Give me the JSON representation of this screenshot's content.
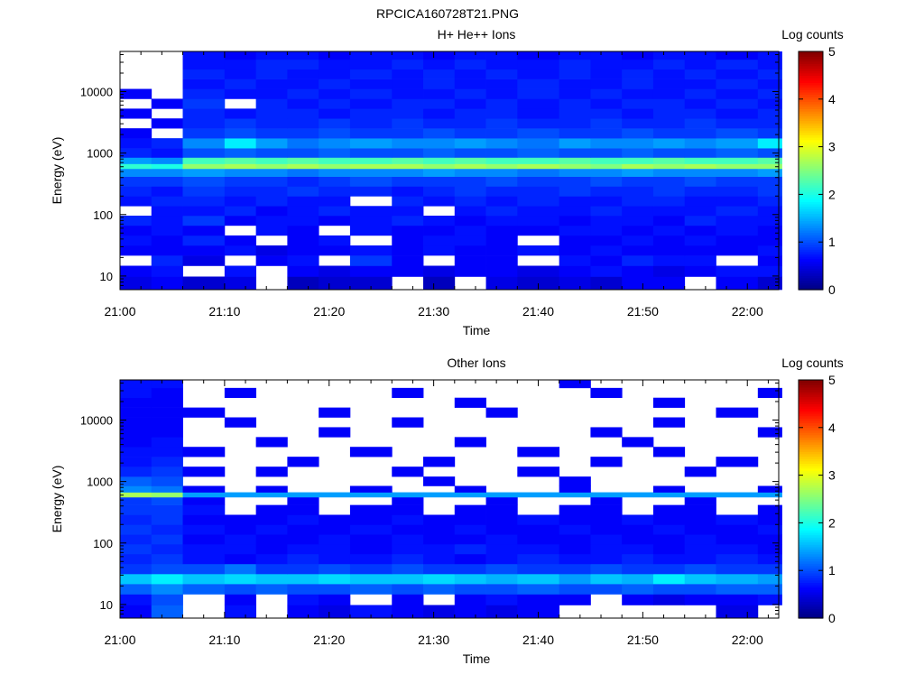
{
  "figure_title": "RPCICA160728T21.PNG",
  "chart_data": [
    {
      "type": "heatmap",
      "title": "H+ He++ Ions",
      "xlabel": "Time",
      "ylabel": "Energy (eV)",
      "x_ticks": [
        "21:00",
        "21:10",
        "21:20",
        "21:30",
        "21:40",
        "21:50",
        "22:00"
      ],
      "x_range": [
        "21:00",
        "22:03"
      ],
      "y_scale": "log",
      "y_ticks": [
        "10",
        "100",
        "1000",
        "10000"
      ],
      "y_range": [
        6,
        45000
      ],
      "colorbar": {
        "label": "Log counts",
        "ticks": [
          "0",
          "1",
          "2",
          "3",
          "4",
          "5"
        ],
        "range": [
          0,
          5
        ],
        "colormap": "jet"
      },
      "time_columns": [
        "21:00",
        "21:03",
        "21:06",
        "21:10",
        "21:13",
        "21:16",
        "21:19",
        "21:22",
        "21:26",
        "21:29",
        "21:32",
        "21:35",
        "21:38",
        "21:42",
        "21:45",
        "21:48",
        "21:51",
        "21:54",
        "21:57",
        "22:01"
      ],
      "energy_levels_eV": [
        8,
        12,
        18,
        26,
        38,
        55,
        80,
        115,
        165,
        240,
        345,
        500,
        620,
        720,
        1000,
        1450,
        2100,
        3050,
        4400,
        6350,
        9200,
        13300,
        19200,
        27800,
        40000
      ],
      "data_gaps": [
        "21:00–21:06 above 12000 eV"
      ],
      "log_counts_rows_low_to_high_energy": [
        [
          0.5,
          0.6,
          0.4,
          0.5,
          0.0,
          0.3,
          0.4,
          0.4,
          0.0,
          0.3,
          0.0,
          0.5,
          0.4,
          0.5,
          0.4,
          0.6,
          0.6,
          0.0,
          0.6,
          0.4
        ],
        [
          0.6,
          0.7,
          0.0,
          0.7,
          0.0,
          0.6,
          0.5,
          0.6,
          0.6,
          0.5,
          0.6,
          0.6,
          0.5,
          0.6,
          0.7,
          0.6,
          0.5,
          0.6,
          0.7,
          0.7
        ],
        [
          0.0,
          0.8,
          0.5,
          0.0,
          0.6,
          0.7,
          0.0,
          0.9,
          0.6,
          0.0,
          0.6,
          0.6,
          0.0,
          0.7,
          0.6,
          0.8,
          0.7,
          0.7,
          0.0,
          0.6
        ],
        [
          0.6,
          0.6,
          0.6,
          0.7,
          0.5,
          0.6,
          0.6,
          0.7,
          0.6,
          0.7,
          0.6,
          0.6,
          0.7,
          0.6,
          0.7,
          0.6,
          0.6,
          0.6,
          0.6,
          0.7
        ],
        [
          0.7,
          0.6,
          0.8,
          0.6,
          0.0,
          0.6,
          0.7,
          0.0,
          0.6,
          0.7,
          0.7,
          0.6,
          0.0,
          0.6,
          0.6,
          0.7,
          0.6,
          0.7,
          0.6,
          0.6
        ],
        [
          0.6,
          0.7,
          0.6,
          0.0,
          0.7,
          0.6,
          0.0,
          0.7,
          0.6,
          0.6,
          0.7,
          0.6,
          0.6,
          0.7,
          0.7,
          0.6,
          0.7,
          0.6,
          0.7,
          0.6
        ],
        [
          0.8,
          0.7,
          0.9,
          0.6,
          0.7,
          0.7,
          0.6,
          0.7,
          0.8,
          0.7,
          0.6,
          0.7,
          0.7,
          0.6,
          0.7,
          0.7,
          0.6,
          0.8,
          0.7,
          0.7
        ],
        [
          0.0,
          0.7,
          0.7,
          0.8,
          0.6,
          0.7,
          0.8,
          0.7,
          0.7,
          0.0,
          0.7,
          0.8,
          0.7,
          0.7,
          0.8,
          0.7,
          0.7,
          0.7,
          0.8,
          0.7
        ],
        [
          0.7,
          0.8,
          0.8,
          0.7,
          0.8,
          0.7,
          0.7,
          0.0,
          0.8,
          0.7,
          0.8,
          0.7,
          0.8,
          0.7,
          0.7,
          0.8,
          0.8,
          0.7,
          0.7,
          0.8
        ],
        [
          0.8,
          0.7,
          0.9,
          0.8,
          0.8,
          0.9,
          0.8,
          0.8,
          0.7,
          0.8,
          0.9,
          0.8,
          0.8,
          0.9,
          0.8,
          0.8,
          0.9,
          0.8,
          0.8,
          0.9
        ],
        [
          0.9,
          0.9,
          1.0,
          0.9,
          0.9,
          0.8,
          0.9,
          1.0,
          0.9,
          0.9,
          0.9,
          1.0,
          0.9,
          0.9,
          1.0,
          0.9,
          0.9,
          1.0,
          0.9,
          0.9
        ],
        [
          1.3,
          1.3,
          1.4,
          1.3,
          1.3,
          1.2,
          1.3,
          1.3,
          1.3,
          1.4,
          1.3,
          1.3,
          1.2,
          1.3,
          1.3,
          1.4,
          1.3,
          1.3,
          1.3,
          1.4
        ],
        [
          2.1,
          2.0,
          2.6,
          2.7,
          2.6,
          2.7,
          2.6,
          2.7,
          2.7,
          2.6,
          2.7,
          2.6,
          2.7,
          2.6,
          2.5,
          2.7,
          2.6,
          2.7,
          2.6,
          2.6
        ],
        [
          1.4,
          1.3,
          2.2,
          2.3,
          2.2,
          2.3,
          2.2,
          2.2,
          2.3,
          2.2,
          2.3,
          2.2,
          2.2,
          2.3,
          2.2,
          2.2,
          2.3,
          2.2,
          2.2,
          2.3
        ],
        [
          0.8,
          0.7,
          1.0,
          1.1,
          1.0,
          1.0,
          1.1,
          1.0,
          1.0,
          1.1,
          1.0,
          1.0,
          1.1,
          1.0,
          1.0,
          1.1,
          1.0,
          1.0,
          1.1,
          1.0
        ],
        [
          0.7,
          0.8,
          1.3,
          1.8,
          1.4,
          1.2,
          1.3,
          1.4,
          1.3,
          1.3,
          1.4,
          1.3,
          1.2,
          1.4,
          1.3,
          1.3,
          1.4,
          1.3,
          1.4,
          1.8
        ],
        [
          0.6,
          0.0,
          0.9,
          1.0,
          0.9,
          0.9,
          1.0,
          0.9,
          0.9,
          1.0,
          0.9,
          0.9,
          1.0,
          0.9,
          0.9,
          1.0,
          0.9,
          0.9,
          1.0,
          0.9
        ],
        [
          0.0,
          0.6,
          0.8,
          0.9,
          0.8,
          0.8,
          0.9,
          0.8,
          0.9,
          0.8,
          0.8,
          0.9,
          0.8,
          0.8,
          0.9,
          0.8,
          0.8,
          0.9,
          0.8,
          0.8
        ],
        [
          0.6,
          0.0,
          0.8,
          0.7,
          0.8,
          0.8,
          0.7,
          0.8,
          0.8,
          0.7,
          0.8,
          0.8,
          0.7,
          0.8,
          0.8,
          0.7,
          0.8,
          0.8,
          0.7,
          0.8
        ],
        [
          0.0,
          0.6,
          0.9,
          0.0,
          0.8,
          0.7,
          0.8,
          0.7,
          0.8,
          0.8,
          0.7,
          0.8,
          0.7,
          0.8,
          0.7,
          0.8,
          0.8,
          0.7,
          0.8,
          0.7
        ],
        [
          0.6,
          0.0,
          0.8,
          0.7,
          0.7,
          0.8,
          0.7,
          0.8,
          0.7,
          0.7,
          0.8,
          0.7,
          0.8,
          0.7,
          0.8,
          0.7,
          0.7,
          0.8,
          0.7,
          0.8
        ],
        [
          0.0,
          0.0,
          0.7,
          0.8,
          0.7,
          0.7,
          0.8,
          0.7,
          0.7,
          0.8,
          0.7,
          0.7,
          0.8,
          0.7,
          0.7,
          0.8,
          0.7,
          0.7,
          0.8,
          0.7
        ],
        [
          0.0,
          0.0,
          0.8,
          0.7,
          0.8,
          0.7,
          0.7,
          0.8,
          0.7,
          0.8,
          0.7,
          0.8,
          0.7,
          0.8,
          0.7,
          0.8,
          0.7,
          0.8,
          0.7,
          0.8
        ],
        [
          0.0,
          0.0,
          0.7,
          0.7,
          0.8,
          0.8,
          0.7,
          0.7,
          0.8,
          0.7,
          0.8,
          0.7,
          0.7,
          0.8,
          0.7,
          0.7,
          0.8,
          0.7,
          0.8,
          0.7
        ],
        [
          0.0,
          0.0,
          0.7,
          0.6,
          0.7,
          0.7,
          0.6,
          0.7,
          0.7,
          0.6,
          0.7,
          0.7,
          0.6,
          0.7,
          0.7,
          0.6,
          0.7,
          0.7,
          0.6,
          0.7
        ]
      ]
    },
    {
      "type": "heatmap",
      "title": "Other Ions",
      "xlabel": "Time",
      "ylabel": "Energy (eV)",
      "x_ticks": [
        "21:00",
        "21:10",
        "21:20",
        "21:30",
        "21:40",
        "21:50",
        "22:00"
      ],
      "x_range": [
        "21:00",
        "22:03"
      ],
      "y_scale": "log",
      "y_ticks": [
        "10",
        "100",
        "1000",
        "10000"
      ],
      "y_range": [
        6,
        45000
      ],
      "colorbar": {
        "label": "Log counts",
        "ticks": [
          "0",
          "1",
          "2",
          "3",
          "4",
          "5"
        ],
        "range": [
          0,
          5
        ],
        "colormap": "jet"
      },
      "time_columns": [
        "21:00",
        "21:03",
        "21:06",
        "21:10",
        "21:13",
        "21:16",
        "21:19",
        "21:22",
        "21:26",
        "21:29",
        "21:32",
        "21:35",
        "21:38",
        "21:42",
        "21:45",
        "21:48",
        "21:51",
        "21:54",
        "21:57",
        "22:01"
      ],
      "energy_levels_eV": [
        8,
        12,
        18,
        26,
        38,
        55,
        80,
        115,
        165,
        240,
        345,
        500,
        620,
        720,
        1000,
        1450,
        2100,
        3050,
        4400,
        6350,
        9200,
        13300,
        19200,
        27800,
        40000
      ],
      "log_counts_rows_low_to_high_energy": [
        [
          0.6,
          1.1,
          0.0,
          0.7,
          0.0,
          0.6,
          0.5,
          0.7,
          0.6,
          0.5,
          0.6,
          0.5,
          0.6,
          0.0,
          0.0,
          0.0,
          0.0,
          0.0,
          0.5,
          0.0
        ],
        [
          0.7,
          1.0,
          0.0,
          0.6,
          0.0,
          0.7,
          0.6,
          0.0,
          0.6,
          0.0,
          0.6,
          0.7,
          0.6,
          0.6,
          0.0,
          0.6,
          0.5,
          0.6,
          0.6,
          0.7
        ],
        [
          1.1,
          1.3,
          1.1,
          1.0,
          1.1,
          1.0,
          1.0,
          1.1,
          1.0,
          1.1,
          1.0,
          1.0,
          1.1,
          1.0,
          1.0,
          1.1,
          1.0,
          1.0,
          1.1,
          1.1
        ],
        [
          1.6,
          1.8,
          1.6,
          1.7,
          1.6,
          1.6,
          1.7,
          1.6,
          1.6,
          1.7,
          1.6,
          1.5,
          1.6,
          1.4,
          1.6,
          1.5,
          1.8,
          1.6,
          1.5,
          1.4
        ],
        [
          0.9,
          1.0,
          1.0,
          1.2,
          0.9,
          0.9,
          1.0,
          0.9,
          1.0,
          0.9,
          0.9,
          1.0,
          0.9,
          0.9,
          1.0,
          0.9,
          0.9,
          1.0,
          0.9,
          0.9
        ],
        [
          0.8,
          0.9,
          0.7,
          0.6,
          0.7,
          0.8,
          0.7,
          0.7,
          0.8,
          0.7,
          0.6,
          0.7,
          0.8,
          0.7,
          0.7,
          0.8,
          0.7,
          0.7,
          0.8,
          0.7
        ],
        [
          0.9,
          0.8,
          0.7,
          0.7,
          0.6,
          0.7,
          0.7,
          0.6,
          0.7,
          0.7,
          0.8,
          0.7,
          0.7,
          0.6,
          0.7,
          0.7,
          0.6,
          0.7,
          0.7,
          0.6
        ],
        [
          0.8,
          0.9,
          0.6,
          0.7,
          0.6,
          0.6,
          0.7,
          0.6,
          0.7,
          0.6,
          0.6,
          0.7,
          0.6,
          0.6,
          0.7,
          0.6,
          0.6,
          0.7,
          0.6,
          0.6
        ],
        [
          0.9,
          0.8,
          0.7,
          0.6,
          0.7,
          0.6,
          0.6,
          0.7,
          0.6,
          0.6,
          0.7,
          0.6,
          0.6,
          0.7,
          0.6,
          0.6,
          0.7,
          0.6,
          0.6,
          0.7
        ],
        [
          0.8,
          0.9,
          0.6,
          0.6,
          0.6,
          0.7,
          0.6,
          0.6,
          0.7,
          0.6,
          0.6,
          0.6,
          0.7,
          0.6,
          0.6,
          0.7,
          0.6,
          0.6,
          0.7,
          0.6
        ],
        [
          0.9,
          0.9,
          0.7,
          0.0,
          0.6,
          0.6,
          0.0,
          0.6,
          0.6,
          0.0,
          0.6,
          0.6,
          0.0,
          0.6,
          0.6,
          0.0,
          0.6,
          0.6,
          0.0,
          0.6
        ],
        [
          0.9,
          1.0,
          0.6,
          0.0,
          0.0,
          0.6,
          0.0,
          0.0,
          0.6,
          0.0,
          0.0,
          0.6,
          0.0,
          0.0,
          0.6,
          0.0,
          0.0,
          0.6,
          0.0,
          0.0
        ],
        [
          2.7,
          2.6,
          1.4,
          1.4,
          1.4,
          1.4,
          1.4,
          1.4,
          1.4,
          1.4,
          1.4,
          1.4,
          1.4,
          1.4,
          1.4,
          1.4,
          1.4,
          1.4,
          1.4,
          1.4
        ],
        [
          1.3,
          1.2,
          0.6,
          0.0,
          0.6,
          0.0,
          0.0,
          0.6,
          0.0,
          0.0,
          0.6,
          0.0,
          0.0,
          0.6,
          0.0,
          0.0,
          0.6,
          0.0,
          0.0,
          0.6
        ],
        [
          1.1,
          1.0,
          0.0,
          0.0,
          0.0,
          0.0,
          0.0,
          0.0,
          0.0,
          0.6,
          0.0,
          0.0,
          0.0,
          0.6,
          0.0,
          0.0,
          0.0,
          0.0,
          0.0,
          0.0
        ],
        [
          0.8,
          0.9,
          0.6,
          0.0,
          0.6,
          0.0,
          0.0,
          0.0,
          0.6,
          0.0,
          0.0,
          0.0,
          0.6,
          0.0,
          0.0,
          0.0,
          0.0,
          0.6,
          0.0,
          0.0
        ],
        [
          0.7,
          0.8,
          0.0,
          0.0,
          0.0,
          0.6,
          0.0,
          0.0,
          0.0,
          0.6,
          0.0,
          0.0,
          0.0,
          0.0,
          0.6,
          0.0,
          0.0,
          0.0,
          0.6,
          0.0
        ],
        [
          0.7,
          0.7,
          0.6,
          0.0,
          0.0,
          0.0,
          0.0,
          0.6,
          0.0,
          0.0,
          0.0,
          0.0,
          0.6,
          0.0,
          0.0,
          0.0,
          0.6,
          0.0,
          0.0,
          0.0
        ],
        [
          0.6,
          0.7,
          0.0,
          0.0,
          0.6,
          0.0,
          0.0,
          0.0,
          0.0,
          0.0,
          0.6,
          0.0,
          0.0,
          0.0,
          0.0,
          0.6,
          0.0,
          0.0,
          0.0,
          0.0
        ],
        [
          0.6,
          0.6,
          0.0,
          0.0,
          0.0,
          0.0,
          0.6,
          0.0,
          0.0,
          0.0,
          0.0,
          0.0,
          0.0,
          0.0,
          0.6,
          0.0,
          0.0,
          0.0,
          0.0,
          0.6
        ],
        [
          0.6,
          0.6,
          0.0,
          0.6,
          0.0,
          0.0,
          0.0,
          0.0,
          0.6,
          0.0,
          0.0,
          0.0,
          0.0,
          0.0,
          0.0,
          0.0,
          0.6,
          0.0,
          0.0,
          0.0
        ],
        [
          0.6,
          0.6,
          0.6,
          0.0,
          0.0,
          0.0,
          0.6,
          0.0,
          0.0,
          0.0,
          0.0,
          0.6,
          0.0,
          0.0,
          0.0,
          0.0,
          0.0,
          0.0,
          0.6,
          0.0
        ],
        [
          0.6,
          0.6,
          0.0,
          0.0,
          0.0,
          0.0,
          0.0,
          0.0,
          0.0,
          0.0,
          0.6,
          0.0,
          0.0,
          0.0,
          0.0,
          0.0,
          0.6,
          0.0,
          0.0,
          0.0
        ],
        [
          0.7,
          0.6,
          0.0,
          0.6,
          0.0,
          0.0,
          0.0,
          0.0,
          0.6,
          0.0,
          0.0,
          0.0,
          0.0,
          0.0,
          0.6,
          0.0,
          0.0,
          0.0,
          0.0,
          0.6
        ],
        [
          0.7,
          0.7,
          0.0,
          0.0,
          0.0,
          0.0,
          0.0,
          0.0,
          0.0,
          0.0,
          0.0,
          0.0,
          0.0,
          0.6,
          0.0,
          0.0,
          0.0,
          0.0,
          0.0,
          0.0
        ]
      ]
    }
  ]
}
